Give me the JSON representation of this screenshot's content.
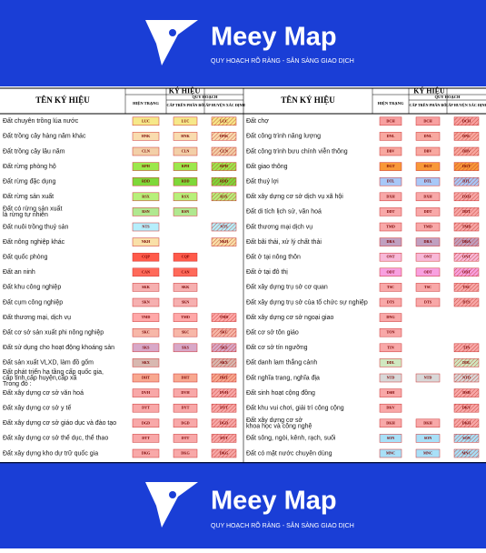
{
  "brand": {
    "name": "Meey Map",
    "tagline": "QUY HOẠCH RÕ RÀNG - SẴN SÀNG GIAO DỊCH"
  },
  "table": {
    "headers": {
      "name": "TÊN KÝ HIỆU",
      "symbol": "KÝ HIỆU",
      "current": "HIỆN TRẠNG",
      "planning": "QUY HOẠCH",
      "upper": "CẤP TRÊN PHÂN BỔ",
      "district": "CẤP HUYỆN XÁC ĐỊNH"
    },
    "left": [
      {
        "name": [
          "Đất chuyên trồng lúa nước"
        ],
        "code": "LUC",
        "color": "#f6e889",
        "upper": true,
        "district": true
      },
      {
        "name": [
          "Đất trồng cây hàng năm khác"
        ],
        "code": "HNK",
        "color": "#f9dcae",
        "upper": true,
        "district": true
      },
      {
        "name": [
          "Đất trồng cây lâu năm"
        ],
        "code": "CLN",
        "color": "#f3cfa8",
        "upper": true,
        "district": true
      },
      {
        "name": [
          "Đất rừng phòng hộ"
        ],
        "code": "RPH",
        "color": "#9ce84c",
        "upper": true,
        "district": true
      },
      {
        "name": [
          "Đất rừng đặc dụng"
        ],
        "code": "RDD",
        "color": "#7ed83a",
        "upper": true,
        "district": true
      },
      {
        "name": [
          "Đất rừng sản xuất"
        ],
        "code": "RSX",
        "color": "#b7f07a",
        "upper": true,
        "district": true
      },
      {
        "name": [
          "Đất có rừng sản xuất",
          "là rừng tự nhiên"
        ],
        "code": "RSN",
        "color": "#b0e890",
        "upper": true,
        "district": false
      },
      {
        "name": [
          "Đất nuôi trồng thuỷ sản"
        ],
        "code": "NTS",
        "color": "#b5eefc",
        "upper": false,
        "district": true
      },
      {
        "name": [
          "Đất nông nghiệp khác"
        ],
        "code": "NKH",
        "color": "#f9e0a8",
        "upper": false,
        "district": true
      },
      {
        "name": [
          "Đất quốc phòng"
        ],
        "code": "CQP",
        "color": "#ff5a4a",
        "upper": true,
        "district": false
      },
      {
        "name": [
          "Đất an ninh"
        ],
        "code": "CAN",
        "color": "#ff6a5a",
        "upper": true,
        "district": false
      },
      {
        "name": [
          "Đất khu công nghiệp"
        ],
        "code": "SKK",
        "color": "#f6b0b0",
        "upper": true,
        "district": false
      },
      {
        "name": [
          "Đất cụm công nghiệp"
        ],
        "code": "SKN",
        "color": "#f6b0b0",
        "upper": true,
        "district": false
      },
      {
        "name": [
          "Đất thương mại, dịch vụ"
        ],
        "code": "TMD",
        "color": "#ffa8a8",
        "upper": true,
        "district": true
      },
      {
        "name": [
          "Đất cơ sở sản xuất phi nông nghiệp"
        ],
        "code": "SKC",
        "color": "#f7b7a8",
        "upper": true,
        "district": true
      },
      {
        "name": [
          "Đất sử dụng cho hoạt động khoáng sản"
        ],
        "code": "SKS",
        "color": "#d8a8c8",
        "upper": true,
        "district": true
      },
      {
        "name": [
          "Đất sản xuất VLXD, làm đồ gốm"
        ],
        "code": "SKX",
        "color": "#d8b8b0",
        "upper": false,
        "district": true
      },
      {
        "name": [
          "Đất phát triển hạ tầng cấp quốc gia,",
          "cấp tỉnh,cấp huyện,cấp xã",
          "Trong đó :"
        ],
        "code": "DHT",
        "color": "#f8a890",
        "upper": true,
        "district": true
      },
      {
        "name": [
          "Đất xây dựng cơ sở văn hoá"
        ],
        "code": "DVH",
        "color": "#f8a8a8",
        "upper": true,
        "district": true
      },
      {
        "name": [
          "Đất xây dựng cơ sở y tế"
        ],
        "code": "DYT",
        "color": "#f8a8a8",
        "upper": true,
        "district": true
      },
      {
        "name": [
          "Đất xây dựng cơ sở giáo dục và đào tạo"
        ],
        "code": "DGD",
        "color": "#f8a8a8",
        "upper": true,
        "district": true
      },
      {
        "name": [
          "Đất xây dựng cơ sở thể dục, thể thao"
        ],
        "code": "DTT",
        "color": "#f8a8a8",
        "upper": true,
        "district": true
      },
      {
        "name": [
          "Đất xây dựng kho dự trữ quốc gia"
        ],
        "code": "DKG",
        "color": "#f8a8a8",
        "upper": true,
        "district": true
      }
    ],
    "right": [
      {
        "name": [
          "Đất chợ"
        ],
        "code": "DCH",
        "color": "#f8a0a0",
        "upper": true,
        "district": true
      },
      {
        "name": [
          "Đất công trình năng lượng"
        ],
        "code": "DNL",
        "color": "#f8a8a0",
        "upper": true,
        "district": true
      },
      {
        "name": [
          "Đất công trình bưu chính viễn thông"
        ],
        "code": "DBV",
        "color": "#f8a8a0",
        "upper": true,
        "district": true
      },
      {
        "name": [
          "Đất giao thông"
        ],
        "code": "DGT",
        "color": "#f89838",
        "upper": true,
        "district": true
      },
      {
        "name": [
          "Đất thuỷ lợi"
        ],
        "code": "DTL",
        "color": "#a8c8f8",
        "upper": true,
        "district": true
      },
      {
        "name": [
          "Đất xây dựng cơ sở dịch vụ xã hội"
        ],
        "code": "DXH",
        "color": "#f8a8a8",
        "upper": true,
        "district": true
      },
      {
        "name": [
          "Đất di tích lịch sử, văn hoá"
        ],
        "code": "DDT",
        "color": "#f8a8a8",
        "upper": true,
        "district": true
      },
      {
        "name": [
          "Đất thương mại dịch vụ"
        ],
        "code": "TMD",
        "color": "#f8a8a8",
        "upper": true,
        "district": true
      },
      {
        "name": [
          "Đất bãi thải, xử lý chất thải"
        ],
        "code": "DRA",
        "color": "#c0a0c0",
        "upper": true,
        "district": true
      },
      {
        "name": [
          "Đất ở tại nông thôn"
        ],
        "code": "ONT",
        "color": "#f8b8d8",
        "upper": true,
        "district": true
      },
      {
        "name": [
          "Đất ở tại đô thị"
        ],
        "code": "ODT",
        "color": "#f8a0e0",
        "upper": true,
        "district": true
      },
      {
        "name": [
          "Đất xây dựng trụ sở cơ quan"
        ],
        "code": "TSC",
        "color": "#f8a8a8",
        "upper": true,
        "district": true
      },
      {
        "name": [
          "Đất xây dựng trụ sở của tổ chức sự nghiệp"
        ],
        "code": "DTS",
        "color": "#f8a8a8",
        "upper": true,
        "district": true
      },
      {
        "name": [
          "Đất xây dựng cơ sở ngoại giao"
        ],
        "code": "DNG",
        "color": "#f8a8a8",
        "upper": false,
        "district": false
      },
      {
        "name": [
          "Đất cơ sở tôn giáo"
        ],
        "code": "TON",
        "color": "#f8a8a8",
        "upper": false,
        "district": false
      },
      {
        "name": [
          "Đất cơ sở tín ngưỡng"
        ],
        "code": "TIN",
        "color": "#f8a8a8",
        "upper": false,
        "district": true
      },
      {
        "name": [
          "Đất danh lam thắng cảnh"
        ],
        "code": "DDL",
        "color": "#d0e8c0",
        "upper": false,
        "district": true
      },
      {
        "name": [
          "Đất nghĩa trang, nghĩa địa"
        ],
        "code": "NTD",
        "color": "#d8d8d8",
        "upper": true,
        "district": true
      },
      {
        "name": [
          "Đất sinh hoạt cộng đồng"
        ],
        "code": "DSH",
        "color": "#f8a8a8",
        "upper": false,
        "district": true
      },
      {
        "name": [
          "Đất khu vui chơi, giải trí công cộng"
        ],
        "code": "DKV",
        "color": "#f8a8a8",
        "upper": false,
        "district": true
      },
      {
        "name": [
          "Đất xây dựng cơ sở",
          "khoa học và công nghệ"
        ],
        "code": "DKH",
        "color": "#f8a8a8",
        "upper": true,
        "district": true
      },
      {
        "name": [
          "Đất sông, ngòi, kênh, rạch, suối"
        ],
        "code": "SON",
        "color": "#a8e0f8",
        "upper": true,
        "district": true
      },
      {
        "name": [
          "Đất có mặt nước chuyên dùng"
        ],
        "code": "MNC",
        "color": "#a8e0f8",
        "upper": true,
        "district": true
      }
    ]
  }
}
